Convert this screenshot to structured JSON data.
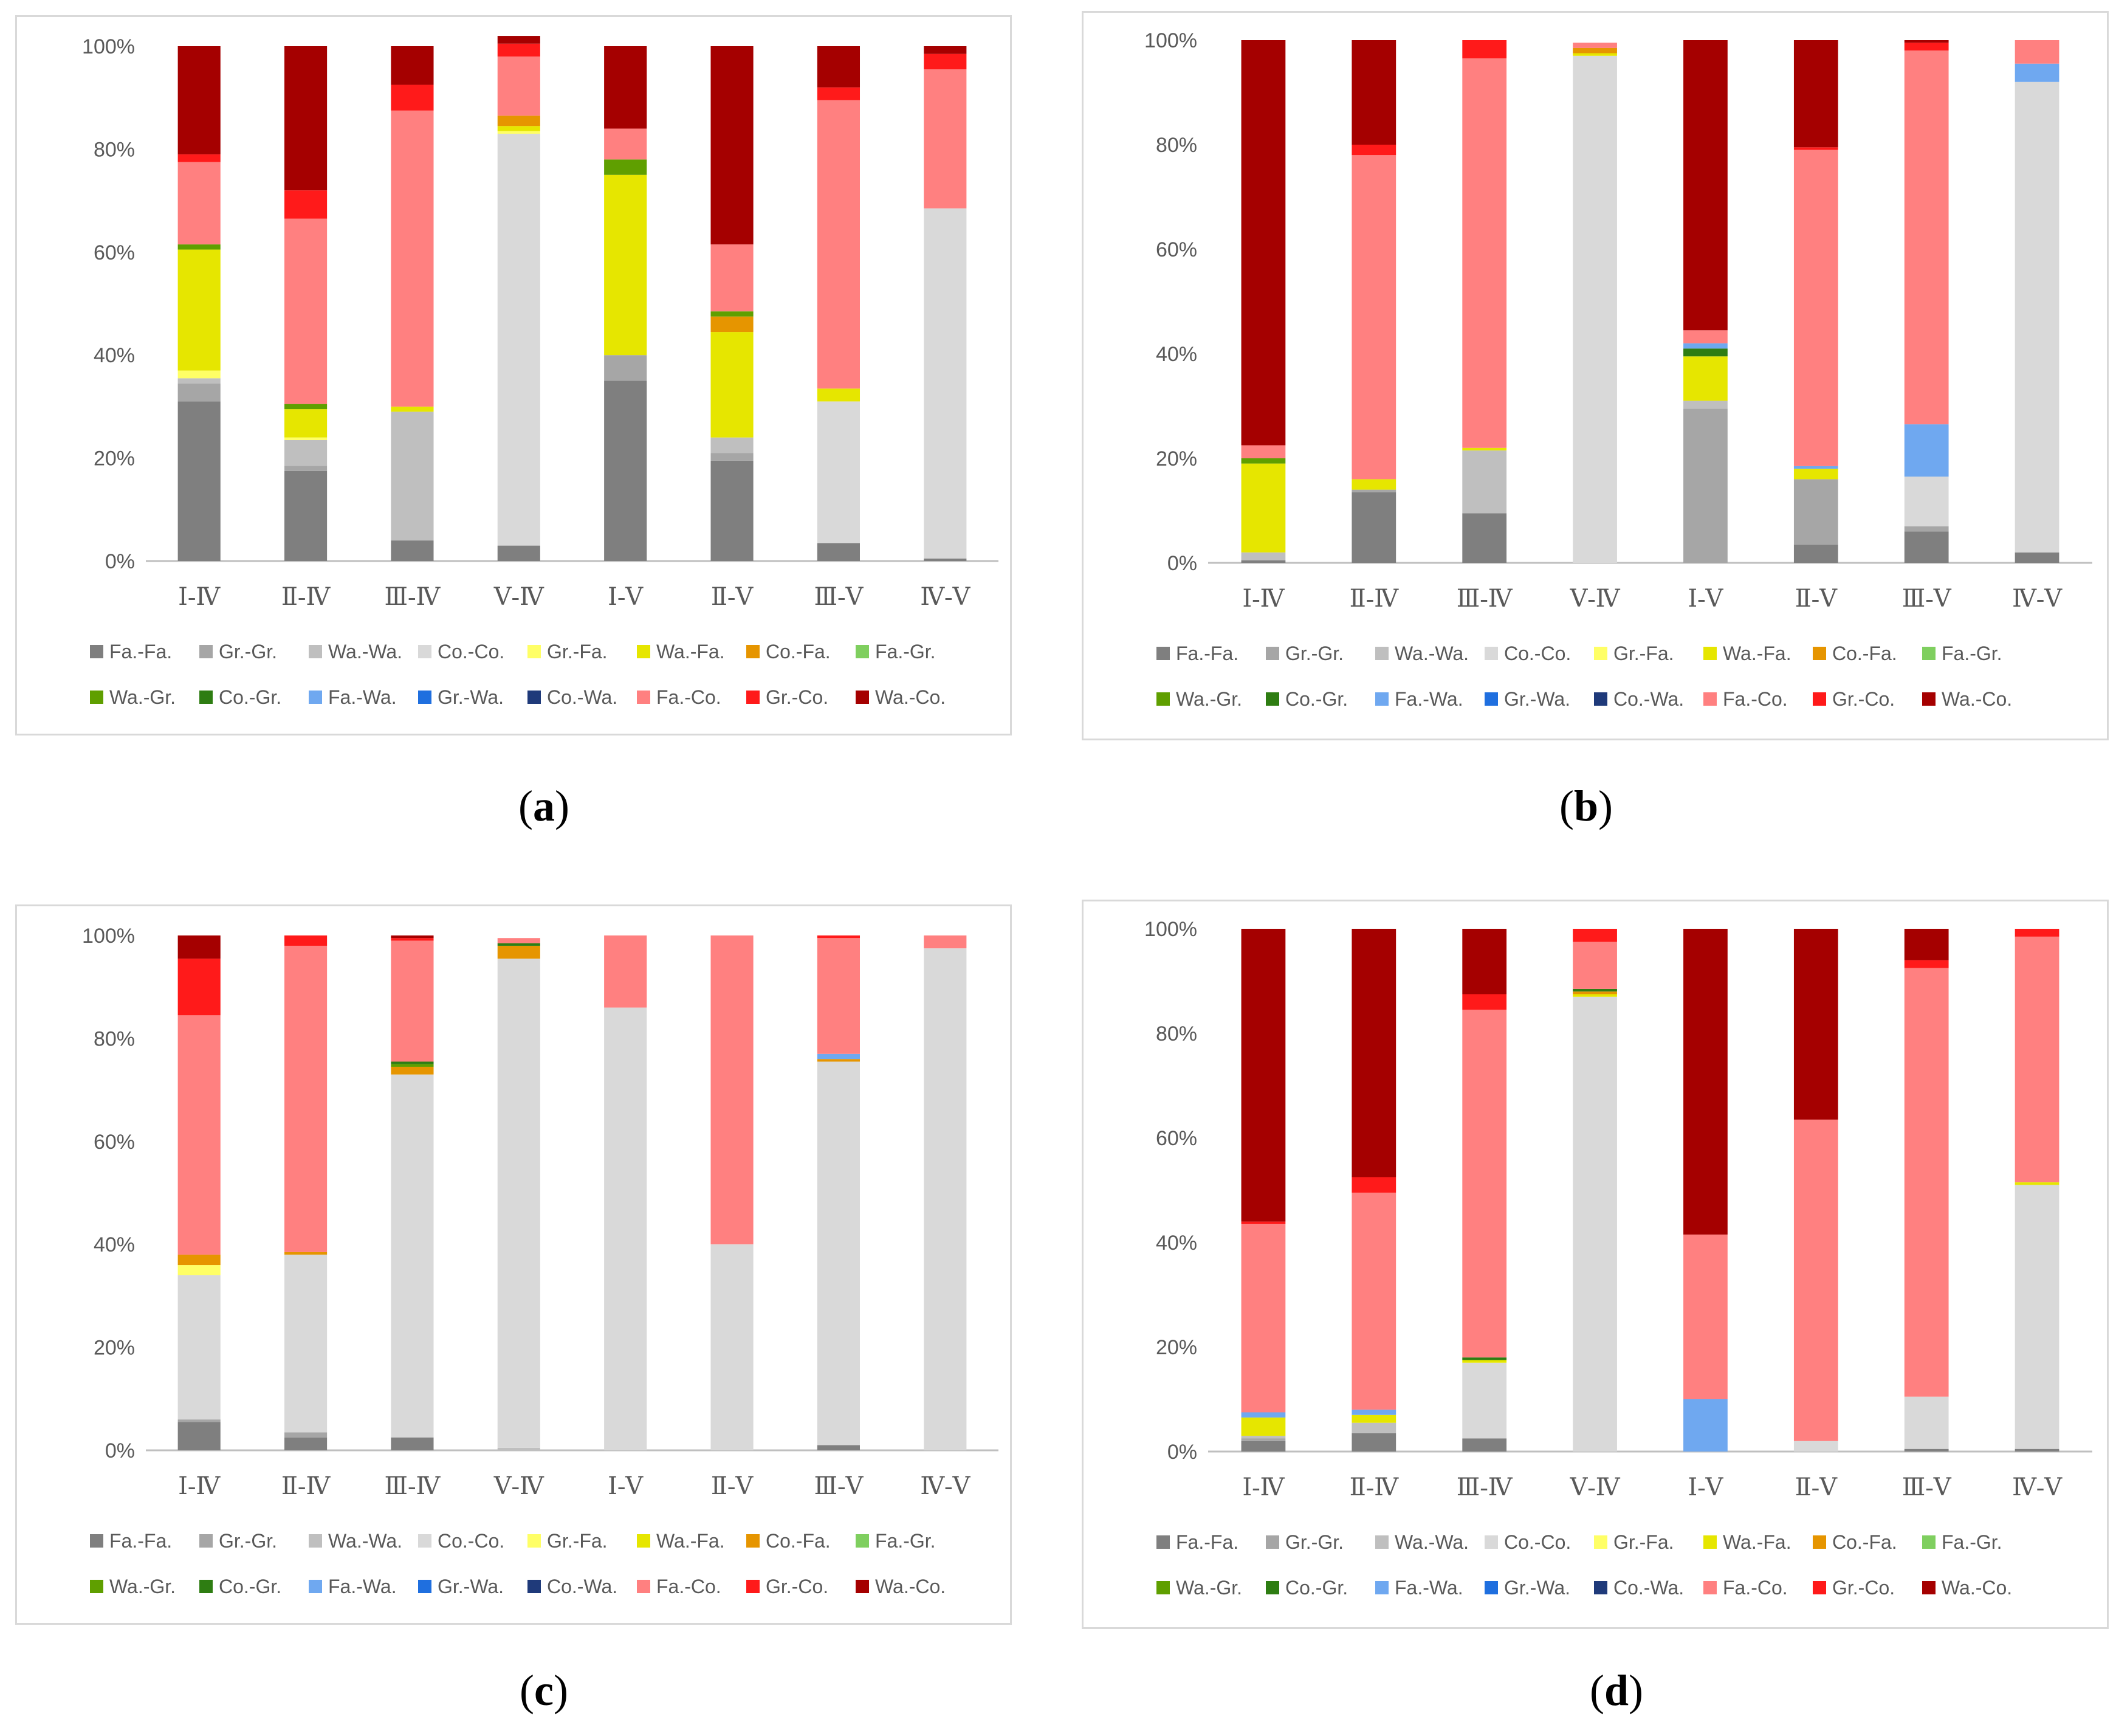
{
  "legend_labels": [
    "Fa.-Fa.",
    "Gr.-Gr.",
    "Wa.-Wa.",
    "Co.-Co.",
    "Gr.-Fa.",
    "Wa.-Fa.",
    "Co.-Fa.",
    "Fa.-Gr.",
    "Wa.-Gr.",
    "Co.-Gr.",
    "Fa.-Wa.",
    "Gr.-Wa.",
    "Co.-Wa.",
    "Fa.-Co.",
    "Gr.-Co.",
    "Wa.-Co."
  ],
  "series_colors": [
    "#7f7f7f",
    "#a6a6a6",
    "#bfbfbf",
    "#d9d9d9",
    "#ffff66",
    "#e6e600",
    "#e69500",
    "#7fcf5f",
    "#5f9f00",
    "#2e7d12",
    "#6fa8f0",
    "#1f6fdf",
    "#1f3a7a",
    "#ff8080",
    "#ff1a1a",
    "#a50000"
  ],
  "chart_data": [
    {
      "type": "bar",
      "stacked": true,
      "caption": "a",
      "categories": [
        "Ⅰ-Ⅳ",
        "Ⅱ-Ⅳ",
        "Ⅲ-Ⅳ",
        "Ⅴ-Ⅳ",
        "Ⅰ-Ⅴ",
        "Ⅱ-Ⅴ",
        "Ⅲ-Ⅴ",
        "Ⅳ-Ⅴ"
      ],
      "yticks": [
        "0%",
        "20%",
        "40%",
        "60%",
        "80%",
        "100%"
      ],
      "ylim": [
        0,
        100
      ],
      "values": [
        [
          31,
          17.5,
          4,
          3,
          35,
          19.5,
          3.5,
          0.5
        ],
        [
          3.5,
          1,
          0,
          0,
          5,
          1.5,
          0,
          0
        ],
        [
          1,
          5,
          25,
          0,
          0,
          3,
          0,
          0
        ],
        [
          0,
          0,
          0,
          80,
          0,
          0,
          27.5,
          68
        ],
        [
          1.5,
          0.5,
          0,
          0.5,
          0,
          0,
          0,
          0
        ],
        [
          23.5,
          5.5,
          1,
          1,
          35,
          20.5,
          2.5,
          0
        ],
        [
          0,
          0,
          0,
          2,
          0,
          3,
          0,
          0
        ],
        [
          0,
          0,
          0,
          0,
          0,
          0,
          0,
          0
        ],
        [
          1,
          1,
          0,
          0,
          3,
          1,
          0,
          0
        ],
        [
          0,
          0,
          0,
          0,
          0,
          0,
          0,
          0
        ],
        [
          0,
          0,
          0,
          0,
          0,
          0,
          0,
          0
        ],
        [
          0,
          0,
          0,
          0,
          0,
          0,
          0,
          0
        ],
        [
          0,
          0,
          0,
          0,
          0,
          0,
          0,
          0
        ],
        [
          16,
          36,
          57.5,
          11.5,
          6,
          13,
          56,
          27
        ],
        [
          1.5,
          5.5,
          5,
          2.5,
          0,
          0,
          2.5,
          3
        ],
        [
          21,
          28,
          7.5,
          1.5,
          16,
          38.5,
          8,
          1.5
        ]
      ]
    },
    {
      "type": "bar",
      "stacked": true,
      "caption": "b",
      "categories": [
        "Ⅰ-Ⅳ",
        "Ⅱ-Ⅳ",
        "Ⅲ-Ⅳ",
        "Ⅴ-Ⅳ",
        "Ⅰ-Ⅴ",
        "Ⅱ-Ⅴ",
        "Ⅲ-Ⅴ",
        "Ⅳ-Ⅴ"
      ],
      "yticks": [
        "0%",
        "20%",
        "40%",
        "60%",
        "80%",
        "100%"
      ],
      "ylim": [
        0,
        100
      ],
      "values": [
        [
          0.5,
          13.5,
          9.5,
          0,
          0,
          3.5,
          6,
          2
        ],
        [
          0,
          0.5,
          0,
          0,
          29.5,
          12.5,
          1,
          0
        ],
        [
          1.5,
          0,
          12,
          0,
          1.5,
          0,
          0,
          0
        ],
        [
          0,
          0,
          0,
          97,
          0,
          0,
          9.5,
          90
        ],
        [
          0,
          0,
          0,
          0,
          0,
          0,
          0,
          0
        ],
        [
          17,
          2,
          0.5,
          0.5,
          8.5,
          2,
          0,
          0
        ],
        [
          0,
          0,
          0,
          1,
          0,
          0,
          0,
          0
        ],
        [
          0,
          0,
          0,
          0,
          0,
          0,
          0,
          0
        ],
        [
          1,
          0,
          0,
          0,
          0,
          0,
          0,
          0
        ],
        [
          0,
          0,
          0,
          0,
          1.5,
          0,
          0,
          0
        ],
        [
          0,
          0,
          0,
          0,
          1,
          0.5,
          10,
          3.5
        ],
        [
          0,
          0,
          0,
          0,
          0,
          0,
          0,
          0
        ],
        [
          0,
          0,
          0,
          0,
          0,
          0,
          0,
          0
        ],
        [
          2.5,
          62,
          74.5,
          1,
          2.5,
          60.5,
          71.5,
          4.5
        ],
        [
          0,
          2,
          3.5,
          0,
          0,
          0.5,
          1.5,
          0
        ],
        [
          77.5,
          20,
          0,
          0,
          55.5,
          20.5,
          0.5,
          0
        ]
      ]
    },
    {
      "type": "bar",
      "stacked": true,
      "caption": "c",
      "categories": [
        "Ⅰ-Ⅳ",
        "Ⅱ-Ⅳ",
        "Ⅲ-Ⅳ",
        "Ⅴ-Ⅳ",
        "Ⅰ-Ⅴ",
        "Ⅱ-Ⅴ",
        "Ⅲ-Ⅴ",
        "Ⅳ-Ⅴ"
      ],
      "yticks": [
        "0%",
        "20%",
        "40%",
        "60%",
        "80%",
        "100%"
      ],
      "ylim": [
        0,
        100
      ],
      "values": [
        [
          5.5,
          2.5,
          2.5,
          0,
          0,
          0,
          1,
          0
        ],
        [
          0.5,
          1,
          0,
          0,
          0,
          0,
          0,
          0
        ],
        [
          0,
          0,
          0,
          0.5,
          0,
          0,
          0,
          0
        ],
        [
          28,
          34.5,
          70.5,
          95,
          86,
          40,
          74.5,
          97.5
        ],
        [
          2,
          0,
          0,
          0,
          0,
          0,
          0,
          0
        ],
        [
          0,
          0,
          0,
          0,
          0,
          0,
          0,
          0
        ],
        [
          2,
          0.5,
          1.5,
          2.5,
          0,
          0,
          0.5,
          0
        ],
        [
          0,
          0,
          0,
          0,
          0,
          0,
          0,
          0
        ],
        [
          0,
          0,
          0.5,
          0,
          0,
          0,
          0,
          0
        ],
        [
          0,
          0,
          0.5,
          0.5,
          0,
          0,
          0,
          0
        ],
        [
          0,
          0,
          0,
          0,
          0,
          0,
          1,
          0
        ],
        [
          0,
          0,
          0,
          0,
          0,
          0,
          0,
          0
        ],
        [
          0,
          0,
          0,
          0,
          0,
          0,
          0,
          0
        ],
        [
          46.5,
          59.5,
          23.5,
          1,
          14,
          60,
          22.5,
          2.5
        ],
        [
          11,
          2,
          0.5,
          0,
          0,
          0,
          0.5,
          0
        ],
        [
          4.5,
          0,
          0.5,
          0,
          0,
          0,
          0,
          0
        ]
      ]
    },
    {
      "type": "bar",
      "stacked": true,
      "caption": "d",
      "categories": [
        "Ⅰ-Ⅳ",
        "Ⅱ-Ⅳ",
        "Ⅲ-Ⅳ",
        "Ⅴ-Ⅳ",
        "Ⅰ-Ⅴ",
        "Ⅱ-Ⅴ",
        "Ⅲ-Ⅴ",
        "Ⅳ-Ⅴ"
      ],
      "yticks": [
        "0%",
        "20%",
        "40%",
        "60%",
        "80%",
        "100%"
      ],
      "ylim": [
        0,
        100
      ],
      "values": [
        [
          2,
          3.5,
          2.5,
          0,
          0,
          0,
          0.5,
          0.5
        ],
        [
          0.5,
          0,
          0,
          0,
          0,
          0,
          0,
          0
        ],
        [
          0.5,
          2,
          0,
          0,
          0,
          0,
          0,
          0
        ],
        [
          0,
          0,
          14.5,
          87,
          0,
          2,
          10,
          50.5
        ],
        [
          0,
          0,
          0,
          0,
          0,
          0,
          0,
          0
        ],
        [
          3.5,
          1.5,
          0.5,
          0.5,
          0,
          0,
          0,
          0.5
        ],
        [
          0,
          0,
          0,
          0.5,
          0,
          0,
          0,
          0
        ],
        [
          0,
          0,
          0,
          0,
          0,
          0,
          0,
          0
        ],
        [
          0,
          0,
          0,
          0,
          0,
          0,
          0,
          0
        ],
        [
          0,
          0,
          0.5,
          0.5,
          0,
          0,
          0,
          0
        ],
        [
          1,
          1,
          0,
          0,
          10,
          0,
          0,
          0
        ],
        [
          0,
          0,
          0,
          0,
          0,
          0,
          0,
          0
        ],
        [
          0,
          0,
          0,
          0,
          0,
          0,
          0,
          0
        ],
        [
          36,
          41.5,
          66.5,
          9,
          31.5,
          61.5,
          82,
          47
        ],
        [
          0.5,
          3,
          3,
          2.5,
          0,
          0,
          1.5,
          1.5
        ],
        [
          56,
          47.5,
          12.5,
          0,
          58.5,
          36.5,
          6,
          0
        ]
      ]
    }
  ]
}
